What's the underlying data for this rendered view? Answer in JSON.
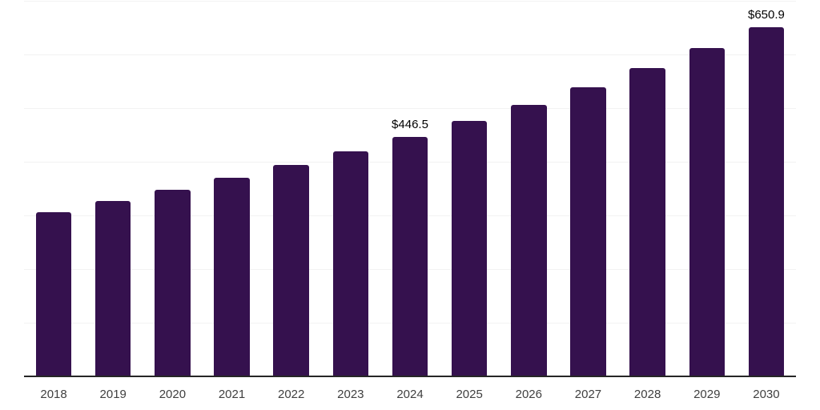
{
  "chart_data": {
    "type": "bar",
    "title": "",
    "xlabel": "",
    "ylabel": "",
    "categories": [
      "2018",
      "2019",
      "2020",
      "2021",
      "2022",
      "2023",
      "2024",
      "2025",
      "2026",
      "2027",
      "2028",
      "2029",
      "2030"
    ],
    "values": [
      306.3,
      326.2,
      347.3,
      369.8,
      393.8,
      419.3,
      446.5,
      475.4,
      506.2,
      539.1,
      574.0,
      611.2,
      650.9
    ],
    "data_labels": [
      {
        "category": "2024",
        "text": "$446.5"
      },
      {
        "category": "2030",
        "text": "$650.9"
      }
    ],
    "ylim": [
      0,
      700
    ],
    "gridline_interval": 100,
    "grid": "horizontal",
    "legend": "none",
    "y_tick_labels_visible": false,
    "colors": {
      "bar": "#35114e",
      "gridline": "#f2f2f2",
      "axis_line": "#262626",
      "x_tick_label": "#404040",
      "data_label": "#000000",
      "background": "#ffffff"
    }
  }
}
